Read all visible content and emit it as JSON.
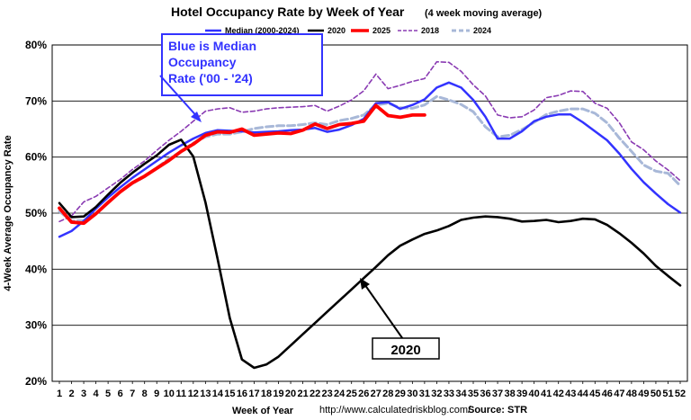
{
  "chart_data": {
    "type": "line",
    "title": "Hotel Occupancy Rate by  Week of Year",
    "subtitle": "(4 week moving average)",
    "xlabel": "Week of Year",
    "ylabel": "4-Week Average Occupancy Rate",
    "xlim": [
      1,
      52
    ],
    "ylim": [
      20,
      80
    ],
    "y_ticks": [
      "20%",
      "30%",
      "40%",
      "50%",
      "60%",
      "70%",
      "80%"
    ],
    "x_ticks": [
      "1",
      "2",
      "3",
      "4",
      "5",
      "6",
      "7",
      "8",
      "9",
      "10",
      "11",
      "12",
      "13",
      "14",
      "15",
      "16",
      "17",
      "18",
      "19",
      "20",
      "21",
      "22",
      "23",
      "24",
      "25",
      "26",
      "27",
      "28",
      "29",
      "30",
      "31",
      "32",
      "33",
      "34",
      "35",
      "36",
      "37",
      "38",
      "39",
      "40",
      "41",
      "42",
      "43",
      "44",
      "45",
      "46",
      "47",
      "48",
      "49",
      "50",
      "51",
      "52"
    ],
    "grid": "horizontal",
    "legend_position": "top",
    "source_url": "http://www.calculatedriskblog.com/",
    "source": "Source: STR",
    "annotations": {
      "median_note": "Blue is Median Occupancy Rate ('00 - '24)",
      "label_2020": "2020"
    },
    "series": [
      {
        "name": "Median (2000-2024)",
        "color": "#3333ff",
        "style": "solid",
        "values": [
          45.8,
          46.8,
          48.6,
          50.8,
          52.8,
          54.6,
          56.3,
          57.8,
          59.3,
          60.8,
          62.1,
          63.3,
          64.3,
          64.8,
          64.7,
          64.6,
          64.4,
          64.5,
          64.6,
          64.8,
          64.9,
          65.2,
          64.5,
          64.9,
          65.7,
          66.8,
          69.6,
          69.8,
          68.6,
          69.3,
          70.3,
          72.4,
          73.3,
          72.4,
          70.2,
          67.2,
          63.3,
          63.3,
          64.6,
          66.4,
          67.2,
          67.6,
          67.6,
          66.2,
          64.6,
          63.0,
          60.6,
          57.9,
          55.5,
          53.5,
          51.6,
          50.1
        ]
      },
      {
        "name": "2020",
        "color": "#000000",
        "style": "solid",
        "values": [
          51.8,
          49.3,
          49.4,
          51.1,
          53.3,
          55.4,
          57.2,
          58.8,
          60.3,
          62.2,
          63.1,
          60.1,
          51.9,
          41.8,
          31.3,
          23.9,
          22.4,
          23.0,
          24.4,
          26.4,
          28.4,
          30.4,
          32.4,
          34.4,
          36.4,
          38.4,
          40.4,
          42.5,
          44.2,
          45.3,
          46.3,
          46.9,
          47.7,
          48.8,
          49.2,
          49.4,
          49.3,
          49.0,
          48.5,
          48.6,
          48.8,
          48.4,
          48.6,
          49.0,
          48.9,
          47.9,
          46.4,
          44.7,
          42.8,
          40.6,
          38.8,
          37.1
        ]
      },
      {
        "name": "2025",
        "color": "#ff0000",
        "style": "solid",
        "values": [
          50.9,
          48.4,
          48.2,
          49.9,
          51.9,
          53.8,
          55.4,
          56.6,
          58.0,
          59.4,
          61.0,
          62.3,
          63.9,
          64.5,
          64.4,
          65.0,
          63.9,
          64.1,
          64.3,
          64.2,
          64.8,
          65.9,
          65.1,
          65.8,
          66.0,
          66.4,
          69.2,
          67.4,
          67.1,
          67.5,
          67.5
        ]
      },
      {
        "name": "2018",
        "color": "#8a3bb3",
        "style": "dashed",
        "values": [
          48.5,
          49.5,
          52.0,
          53.0,
          54.5,
          56.0,
          57.8,
          59.3,
          61.2,
          63.0,
          64.6,
          66.4,
          68.2,
          68.6,
          68.8,
          68.0,
          68.2,
          68.6,
          68.8,
          68.9,
          69.0,
          69.2,
          68.2,
          69.1,
          70.2,
          71.8,
          74.8,
          72.2,
          72.8,
          73.5,
          74.0,
          77.0,
          76.9,
          75.3,
          72.9,
          70.9,
          67.5,
          67.0,
          67.2,
          68.4,
          70.6,
          71.0,
          71.8,
          71.7,
          69.6,
          68.7,
          66.1,
          62.7,
          61.3,
          59.3,
          57.7,
          55.8
        ]
      },
      {
        "name": "2024",
        "color": "#a8b8d8",
        "style": "dashed",
        "values": [
          50.3,
          48.6,
          48.7,
          49.9,
          51.8,
          53.8,
          55.3,
          56.5,
          58.1,
          59.7,
          61.0,
          62.5,
          63.6,
          64.1,
          64.1,
          64.5,
          65.1,
          65.4,
          65.6,
          65.6,
          65.8,
          66.1,
          65.8,
          66.5,
          66.9,
          67.5,
          69.3,
          69.6,
          68.8,
          68.7,
          69.3,
          70.8,
          70.2,
          69.4,
          68.1,
          65.4,
          63.6,
          63.9,
          64.9,
          66.2,
          67.6,
          68.2,
          68.6,
          68.6,
          67.8,
          66.1,
          63.4,
          61.0,
          58.6,
          57.5,
          57.1,
          54.9
        ]
      }
    ]
  }
}
